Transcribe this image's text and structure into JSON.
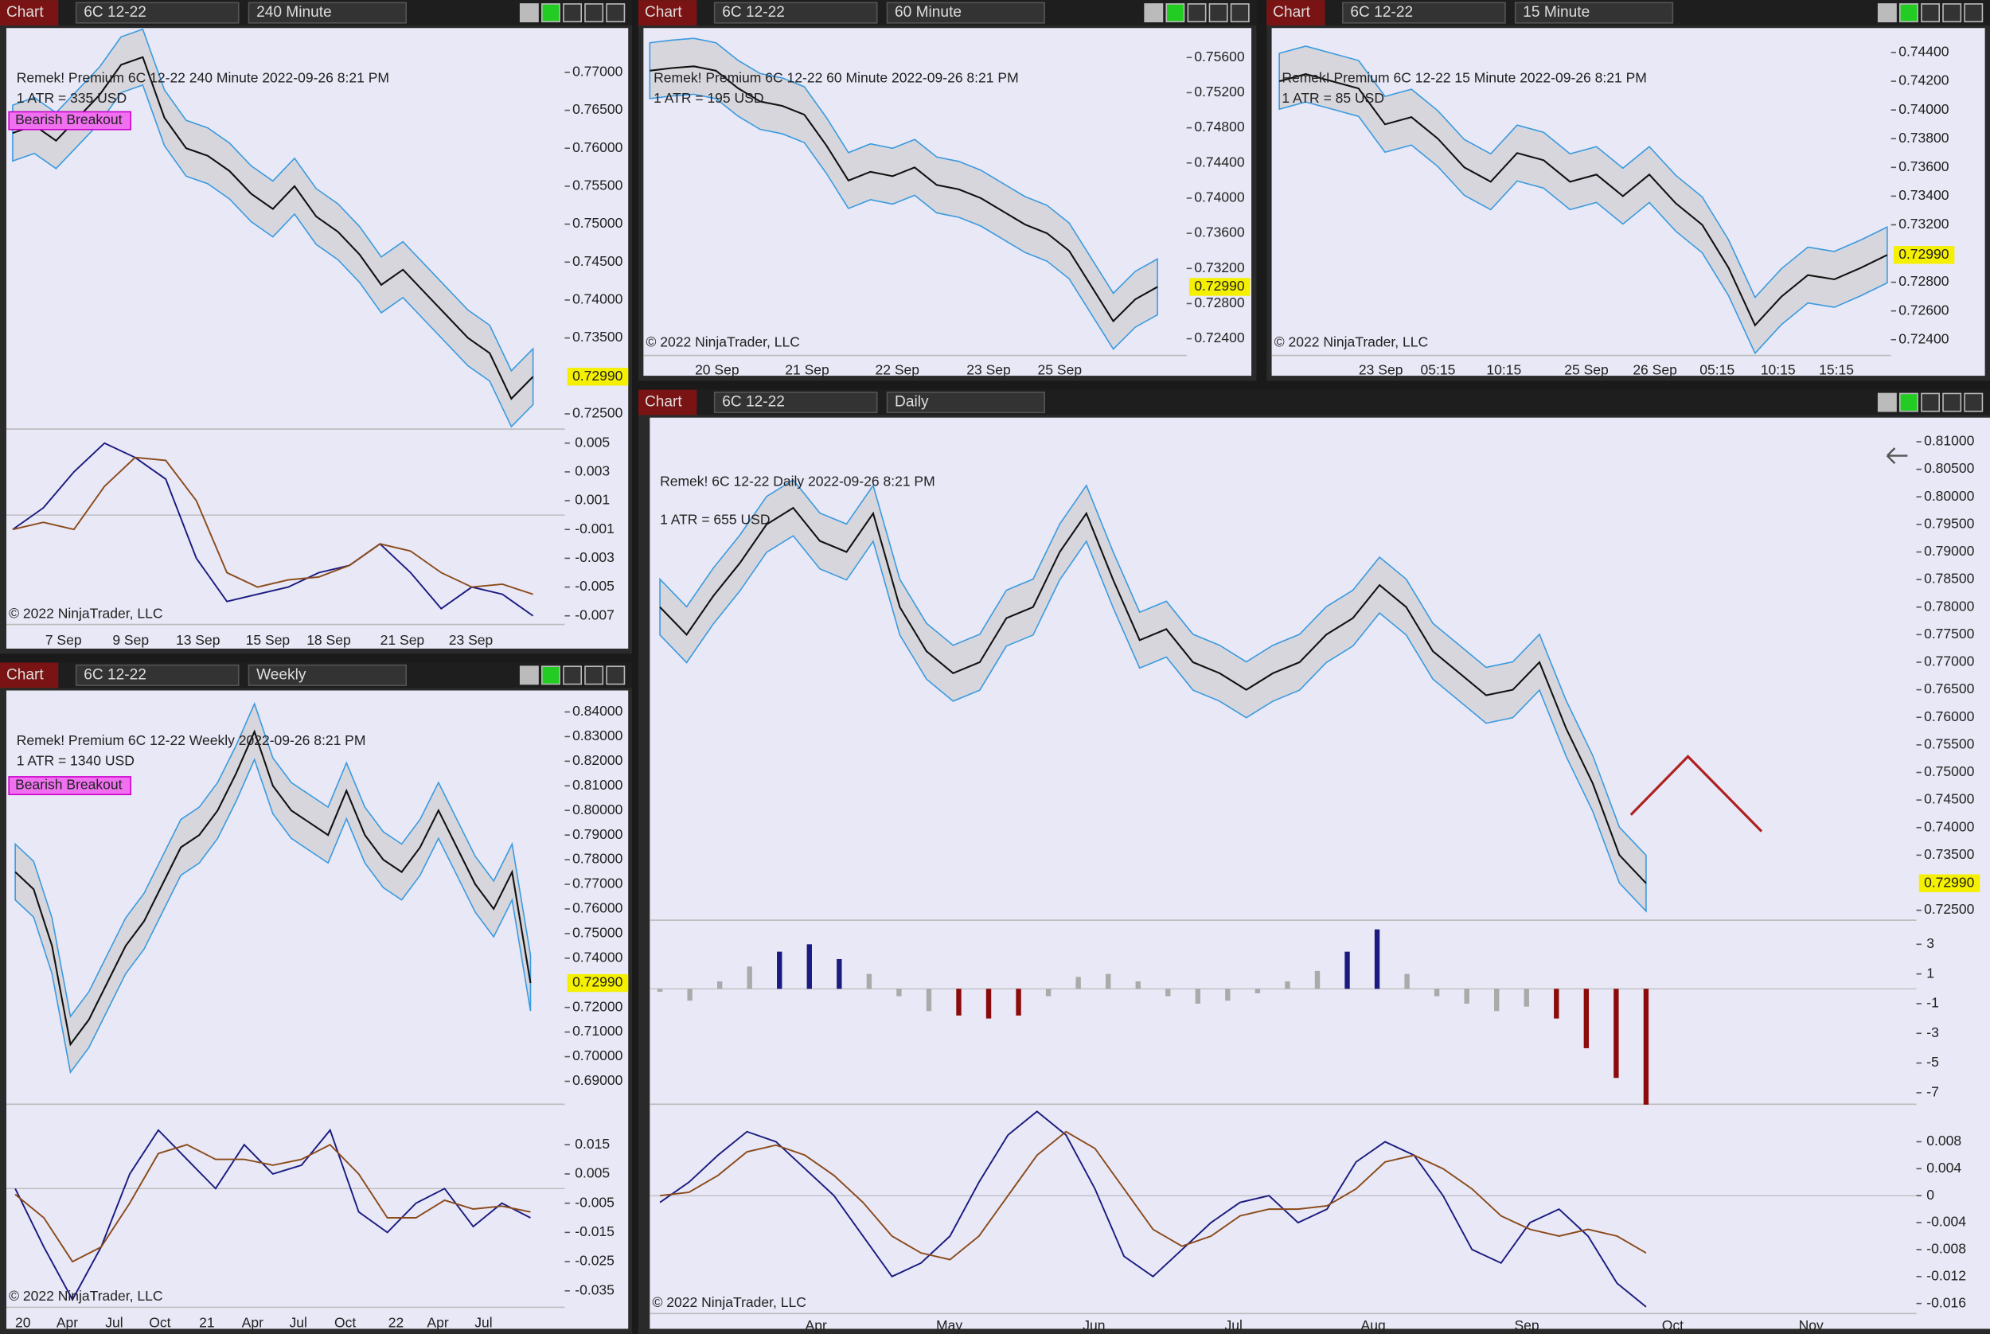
{
  "windows": [
    {
      "tab": "Chart",
      "instrument": "6C 12-22",
      "period": "240 Minute",
      "title": "Remek!  Premium  6C 12-22  240 Minute  2022-09-26 8:21 PM",
      "atr": "1 ATR = 335 USD",
      "badge": "Bearish Breakout",
      "copyright": "© 2022 NinjaTrader, LLC",
      "last": {
        "value": 0.7299,
        "label": "0.72990"
      },
      "ylim": [
        0.723,
        0.7745
      ],
      "yticks": [
        {
          "value": 0.77,
          "label": "0.77000"
        },
        {
          "value": 0.765,
          "label": "0.76500"
        },
        {
          "value": 0.76,
          "label": "0.76000"
        },
        {
          "value": 0.755,
          "label": "0.75500"
        },
        {
          "value": 0.75,
          "label": "0.75000"
        },
        {
          "value": 0.745,
          "label": "0.74500"
        },
        {
          "value": 0.74,
          "label": "0.74000"
        },
        {
          "value": 0.735,
          "label": "0.73500"
        },
        {
          "value": 0.725,
          "label": "0.72500"
        }
      ],
      "xlabels": [
        "7 Sep",
        "9 Sep",
        "13 Sep",
        "15 Sep",
        "18 Sep",
        "21 Sep",
        "23 Sep"
      ],
      "closes": [
        0.762,
        0.763,
        0.761,
        0.764,
        0.767,
        0.771,
        0.772,
        0.764,
        0.76,
        0.759,
        0.757,
        0.754,
        0.752,
        0.755,
        0.751,
        0.749,
        0.746,
        0.742,
        0.744,
        0.741,
        0.738,
        0.735,
        0.733,
        0.727,
        0.7299
      ],
      "osc_ylim": [
        -0.0076,
        0.0058
      ],
      "osc_yticks": [
        0.005,
        0.003,
        0.001,
        -0.001,
        -0.003,
        -0.005,
        -0.007
      ],
      "osc_fast": [
        -0.001,
        0.0005,
        0.003,
        0.005,
        0.004,
        0.0025,
        -0.003,
        -0.006,
        -0.0055,
        -0.005,
        -0.004,
        -0.0035,
        -0.002,
        -0.004,
        -0.0065,
        -0.005,
        -0.0055,
        -0.007
      ],
      "osc_slow": [
        -0.001,
        -0.0005,
        -0.001,
        0.002,
        0.004,
        0.0038,
        0.001,
        -0.004,
        -0.005,
        -0.0045,
        -0.0043,
        -0.0035,
        -0.002,
        -0.0025,
        -0.004,
        -0.005,
        -0.0048,
        -0.0055
      ]
    },
    {
      "tab": "Chart",
      "instrument": "6C 12-22",
      "period": "60 Minute",
      "title": "Remek!  Premium  6C 12-22  60 Minute  2022-09-26 8:21 PM",
      "atr": "1 ATR = 195 USD",
      "copyright": "© 2022 NinjaTrader, LLC",
      "last": {
        "value": 0.7299,
        "label": "0.72990"
      },
      "ylim": [
        0.7221,
        0.7582
      ],
      "yticks": [
        {
          "value": 0.756,
          "label": "0.75600"
        },
        {
          "value": 0.752,
          "label": "0.75200"
        },
        {
          "value": 0.748,
          "label": "0.74800"
        },
        {
          "value": 0.744,
          "label": "0.74400"
        },
        {
          "value": 0.74,
          "label": "0.74000"
        },
        {
          "value": 0.736,
          "label": "0.73600"
        },
        {
          "value": 0.732,
          "label": "0.73200"
        },
        {
          "value": 0.728,
          "label": "0.72800"
        },
        {
          "value": 0.724,
          "label": "0.72400"
        }
      ],
      "xlabels": [
        "20 Sep",
        "21 Sep",
        "22 Sep",
        "23 Sep",
        "25 Sep"
      ],
      "closes": [
        0.7545,
        0.7548,
        0.755,
        0.7545,
        0.7525,
        0.751,
        0.7505,
        0.7495,
        0.746,
        0.742,
        0.743,
        0.7425,
        0.7435,
        0.7415,
        0.741,
        0.74,
        0.7385,
        0.737,
        0.736,
        0.734,
        0.73,
        0.726,
        0.7285,
        0.7299
      ]
    },
    {
      "tab": "Chart",
      "instrument": "6C 12-22",
      "period": "15 Minute",
      "title": "Remek!  Premium  6C 12-22  15 Minute  2022-09-26 8:21 PM",
      "atr": "1 ATR = 85 USD",
      "copyright": "© 2022 NinjaTrader, LLC",
      "last": {
        "value": 0.7299,
        "label": "0.72990"
      },
      "ylim": [
        0.7229,
        0.745
      ],
      "yticks": [
        {
          "value": 0.744,
          "label": "0.74400"
        },
        {
          "value": 0.742,
          "label": "0.74200"
        },
        {
          "value": 0.74,
          "label": "0.74000"
        },
        {
          "value": 0.738,
          "label": "0.73800"
        },
        {
          "value": 0.736,
          "label": "0.73600"
        },
        {
          "value": 0.734,
          "label": "0.73400"
        },
        {
          "value": 0.732,
          "label": "0.73200"
        },
        {
          "value": 0.728,
          "label": "0.72800"
        },
        {
          "value": 0.726,
          "label": "0.72600"
        },
        {
          "value": 0.724,
          "label": "0.72400"
        }
      ],
      "xlabels": [
        "23 Sep",
        "05:15",
        "10:15",
        "25 Sep",
        "26 Sep",
        "05:15",
        "10:15",
        "15:15"
      ],
      "closes": [
        0.742,
        0.7425,
        0.742,
        0.7415,
        0.739,
        0.7395,
        0.738,
        0.736,
        0.735,
        0.737,
        0.7365,
        0.735,
        0.7355,
        0.734,
        0.7355,
        0.7335,
        0.732,
        0.729,
        0.725,
        0.727,
        0.7285,
        0.7282,
        0.729,
        0.7299
      ]
    },
    {
      "tab": "Chart",
      "instrument": "6C 12-22",
      "period": "Weekly",
      "title": "Remek!  Premium  6C 12-22  Weekly  2022-09-26 8:21 PM",
      "atr": "1 ATR = 1340 USD",
      "badge": "Bearish Breakout",
      "copyright": "© 2022 NinjaTrader, LLC",
      "last": {
        "value": 0.7299,
        "label": "0.72990"
      },
      "ylim": [
        0.6807,
        0.8446
      ],
      "yticks": [
        {
          "value": 0.84,
          "label": "0.84000"
        },
        {
          "value": 0.83,
          "label": "0.83000"
        },
        {
          "value": 0.82,
          "label": "0.82000"
        },
        {
          "value": 0.81,
          "label": "0.81000"
        },
        {
          "value": 0.8,
          "label": "0.80000"
        },
        {
          "value": 0.79,
          "label": "0.79000"
        },
        {
          "value": 0.78,
          "label": "0.78000"
        },
        {
          "value": 0.77,
          "label": "0.77000"
        },
        {
          "value": 0.76,
          "label": "0.76000"
        },
        {
          "value": 0.75,
          "label": "0.75000"
        },
        {
          "value": 0.74,
          "label": "0.74000"
        },
        {
          "value": 0.72,
          "label": "0.72000"
        },
        {
          "value": 0.71,
          "label": "0.71000"
        },
        {
          "value": 0.7,
          "label": "0.70000"
        },
        {
          "value": 0.69,
          "label": "0.69000"
        }
      ],
      "xlabels": [
        "20",
        "Apr",
        "Jul",
        "Oct",
        "21",
        "Apr",
        "Jul",
        "Oct",
        "22",
        "Apr",
        "Jul"
      ],
      "closes": [
        0.775,
        0.768,
        0.745,
        0.705,
        0.715,
        0.73,
        0.745,
        0.755,
        0.77,
        0.785,
        0.79,
        0.8,
        0.815,
        0.832,
        0.81,
        0.8,
        0.795,
        0.79,
        0.808,
        0.79,
        0.78,
        0.775,
        0.785,
        0.8,
        0.785,
        0.77,
        0.76,
        0.775,
        0.7299
      ],
      "osc_ylim": [
        -0.0406,
        0.0267
      ],
      "osc_yticks": [
        0.015,
        0.005,
        -0.005,
        -0.015,
        -0.025,
        -0.035
      ],
      "osc_fast": [
        0,
        -0.02,
        -0.038,
        -0.02,
        0.005,
        0.02,
        0.01,
        0,
        0.015,
        0.005,
        0.008,
        0.02,
        -0.008,
        -0.015,
        -0.005,
        0,
        -0.013,
        -0.005,
        -0.01
      ],
      "osc_slow": [
        -0.002,
        -0.01,
        -0.025,
        -0.02,
        -0.005,
        0.012,
        0.015,
        0.01,
        0.01,
        0.008,
        0.01,
        0.015,
        0.005,
        -0.01,
        -0.01,
        -0.004,
        -0.007,
        -0.006,
        -0.008
      ]
    },
    {
      "tab": "Chart",
      "instrument": "6C 12-22",
      "period": "Daily",
      "title": "Remek!  6C 12-22  Daily  2022-09-26 8:21 PM",
      "atr": "1 ATR = 655 USD",
      "copyright": "© 2022 NinjaTrader, LLC",
      "last": {
        "value": 0.7299,
        "label": "0.72990"
      },
      "ylim": [
        0.7232,
        0.8123
      ],
      "yticks": [
        {
          "value": 0.81,
          "label": "0.81000"
        },
        {
          "value": 0.805,
          "label": "0.80500"
        },
        {
          "value": 0.8,
          "label": "0.80000"
        },
        {
          "value": 0.795,
          "label": "0.79500"
        },
        {
          "value": 0.79,
          "label": "0.79000"
        },
        {
          "value": 0.785,
          "label": "0.78500"
        },
        {
          "value": 0.78,
          "label": "0.78000"
        },
        {
          "value": 0.775,
          "label": "0.77500"
        },
        {
          "value": 0.77,
          "label": "0.77000"
        },
        {
          "value": 0.765,
          "label": "0.76500"
        },
        {
          "value": 0.76,
          "label": "0.76000"
        },
        {
          "value": 0.755,
          "label": "0.75500"
        },
        {
          "value": 0.75,
          "label": "0.75000"
        },
        {
          "value": 0.745,
          "label": "0.74500"
        },
        {
          "value": 0.74,
          "label": "0.74000"
        },
        {
          "value": 0.735,
          "label": "0.73500"
        },
        {
          "value": 0.725,
          "label": "0.72500"
        }
      ],
      "xlabels": [
        "Apr",
        "May",
        "Jun",
        "Jul",
        "Aug",
        "Sep",
        "Oct",
        "Nov"
      ],
      "closes": [
        0.78,
        0.775,
        0.782,
        0.788,
        0.795,
        0.798,
        0.792,
        0.79,
        0.797,
        0.78,
        0.772,
        0.768,
        0.77,
        0.778,
        0.78,
        0.79,
        0.797,
        0.785,
        0.774,
        0.776,
        0.77,
        0.768,
        0.765,
        0.768,
        0.77,
        0.775,
        0.778,
        0.784,
        0.78,
        0.772,
        0.768,
        0.764,
        0.765,
        0.77,
        0.758,
        0.748,
        0.735,
        0.7299
      ],
      "hist_ylim": [
        -7.77,
        4.45
      ],
      "hist_yticks": [
        3,
        1,
        -1,
        -3,
        -5,
        -7
      ],
      "hist": [
        -0.2,
        -0.8,
        0.5,
        1.5,
        2.5,
        3,
        2,
        1,
        -0.5,
        -1.5,
        -1.8,
        -2,
        -1.8,
        -0.5,
        0.8,
        1,
        0.5,
        -0.5,
        -1,
        -0.8,
        -0.3,
        0.5,
        1.2,
        2.5,
        4,
        1,
        -0.5,
        -1,
        -1.5,
        -1.2,
        -2,
        -4,
        -6,
        -7.8
      ],
      "osc_ylim": [
        -0.0175,
        0.0132
      ],
      "osc_yticks": [
        0.008,
        0.004,
        0,
        -0.004,
        -0.008,
        -0.012,
        -0.016
      ],
      "osc_fast": [
        -0.001,
        0.002,
        0.006,
        0.0095,
        0.008,
        0.004,
        0,
        -0.006,
        -0.012,
        -0.01,
        -0.006,
        0.002,
        0.009,
        0.0125,
        0.009,
        0.001,
        -0.009,
        -0.012,
        -0.008,
        -0.004,
        -0.001,
        0,
        -0.004,
        -0.002,
        0.005,
        0.008,
        0.006,
        0,
        -0.008,
        -0.01,
        -0.004,
        -0.002,
        -0.006,
        -0.013,
        -0.0165
      ],
      "osc_slow": [
        0,
        0.0005,
        0.003,
        0.0065,
        0.0075,
        0.006,
        0.003,
        -0.001,
        -0.006,
        -0.0085,
        -0.0095,
        -0.006,
        0,
        0.006,
        0.0095,
        0.007,
        0.001,
        -0.005,
        -0.0075,
        -0.006,
        -0.003,
        -0.002,
        -0.002,
        -0.0015,
        0.001,
        0.005,
        0.006,
        0.004,
        0.001,
        -0.003,
        -0.005,
        -0.006,
        -0.005,
        -0.006,
        -0.0085
      ]
    }
  ]
}
